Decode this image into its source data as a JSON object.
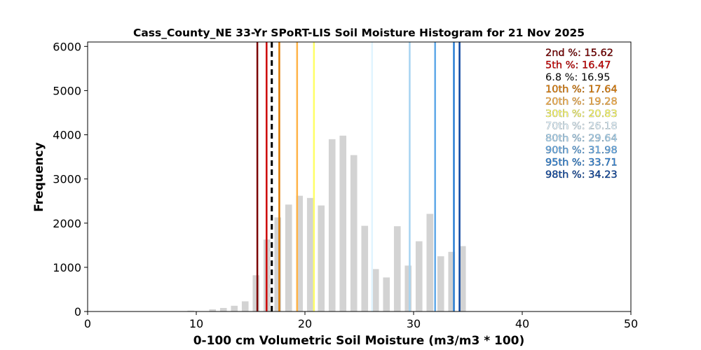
{
  "chart_data": {
    "type": "bar",
    "title": "Cass_County_NE 33-Yr SPoRT-LIS Soil Moisture Histogram for 21 Nov 2025",
    "xlabel": "0-100 cm Volumetric Soil Moisture (m3/m3 * 100)",
    "ylabel": "Frequency",
    "xlim": [
      0,
      50
    ],
    "ylim": [
      0,
      6100
    ],
    "xticks": [
      0,
      10,
      20,
      30,
      40,
      50
    ],
    "yticks": [
      0,
      1000,
      2000,
      3000,
      4000,
      5000,
      6000
    ],
    "bar_color": "#d3d3d3",
    "bins": [
      {
        "x": 9.5,
        "count": 20
      },
      {
        "x": 11.5,
        "count": 50
      },
      {
        "x": 12.5,
        "count": 80
      },
      {
        "x": 13.5,
        "count": 130
      },
      {
        "x": 14.5,
        "count": 230
      },
      {
        "x": 15.5,
        "count": 820
      },
      {
        "x": 16.5,
        "count": 1630
      },
      {
        "x": 17.5,
        "count": 2130
      },
      {
        "x": 18.5,
        "count": 2420
      },
      {
        "x": 19.5,
        "count": 2620
      },
      {
        "x": 20.5,
        "count": 2570
      },
      {
        "x": 21.5,
        "count": 2400
      },
      {
        "x": 22.5,
        "count": 3900
      },
      {
        "x": 23.5,
        "count": 3980
      },
      {
        "x": 24.5,
        "count": 3540
      },
      {
        "x": 25.5,
        "count": 1940
      },
      {
        "x": 26.5,
        "count": 960
      },
      {
        "x": 27.5,
        "count": 770
      },
      {
        "x": 28.5,
        "count": 1930
      },
      {
        "x": 29.5,
        "count": 1040
      },
      {
        "x": 30.5,
        "count": 1590
      },
      {
        "x": 31.5,
        "count": 2210
      },
      {
        "x": 32.5,
        "count": 1250
      },
      {
        "x": 33.5,
        "count": 1350
      },
      {
        "x": 34.5,
        "count": 1480
      }
    ],
    "percentile_lines": [
      {
        "label": "2nd %: 15.62",
        "value": 15.62,
        "color": "#7b0000",
        "dashed": false
      },
      {
        "label": "5th %: 16.47",
        "value": 16.47,
        "color": "#cc0000",
        "dashed": false
      },
      {
        "label": "6.8 %: 16.95",
        "value": 16.95,
        "color": "#000000",
        "dashed": true
      },
      {
        "label": "10th %: 17.64",
        "value": 17.64,
        "color": "#e07b00",
        "dashed": false
      },
      {
        "label": "20th %: 19.28",
        "value": 19.28,
        "color": "#ffb347",
        "dashed": false
      },
      {
        "label": "30th %: 20.83",
        "value": 20.83,
        "color": "#ffff66",
        "dashed": false
      },
      {
        "label": "70th %: 26.18",
        "value": 26.18,
        "color": "#e0f4ff",
        "dashed": false
      },
      {
        "label": "80th %: 29.64",
        "value": 29.64,
        "color": "#a6d4f2",
        "dashed": false
      },
      {
        "label": "90th %: 31.98",
        "value": 31.98,
        "color": "#5fa8e8",
        "dashed": false
      },
      {
        "label": "95th %: 33.71",
        "value": 33.71,
        "color": "#2a7fd4",
        "dashed": false
      },
      {
        "label": "98th %: 34.23",
        "value": 34.23,
        "color": "#0d47a1",
        "dashed": false
      }
    ],
    "legend_placement": "top-right",
    "grid": false
  }
}
